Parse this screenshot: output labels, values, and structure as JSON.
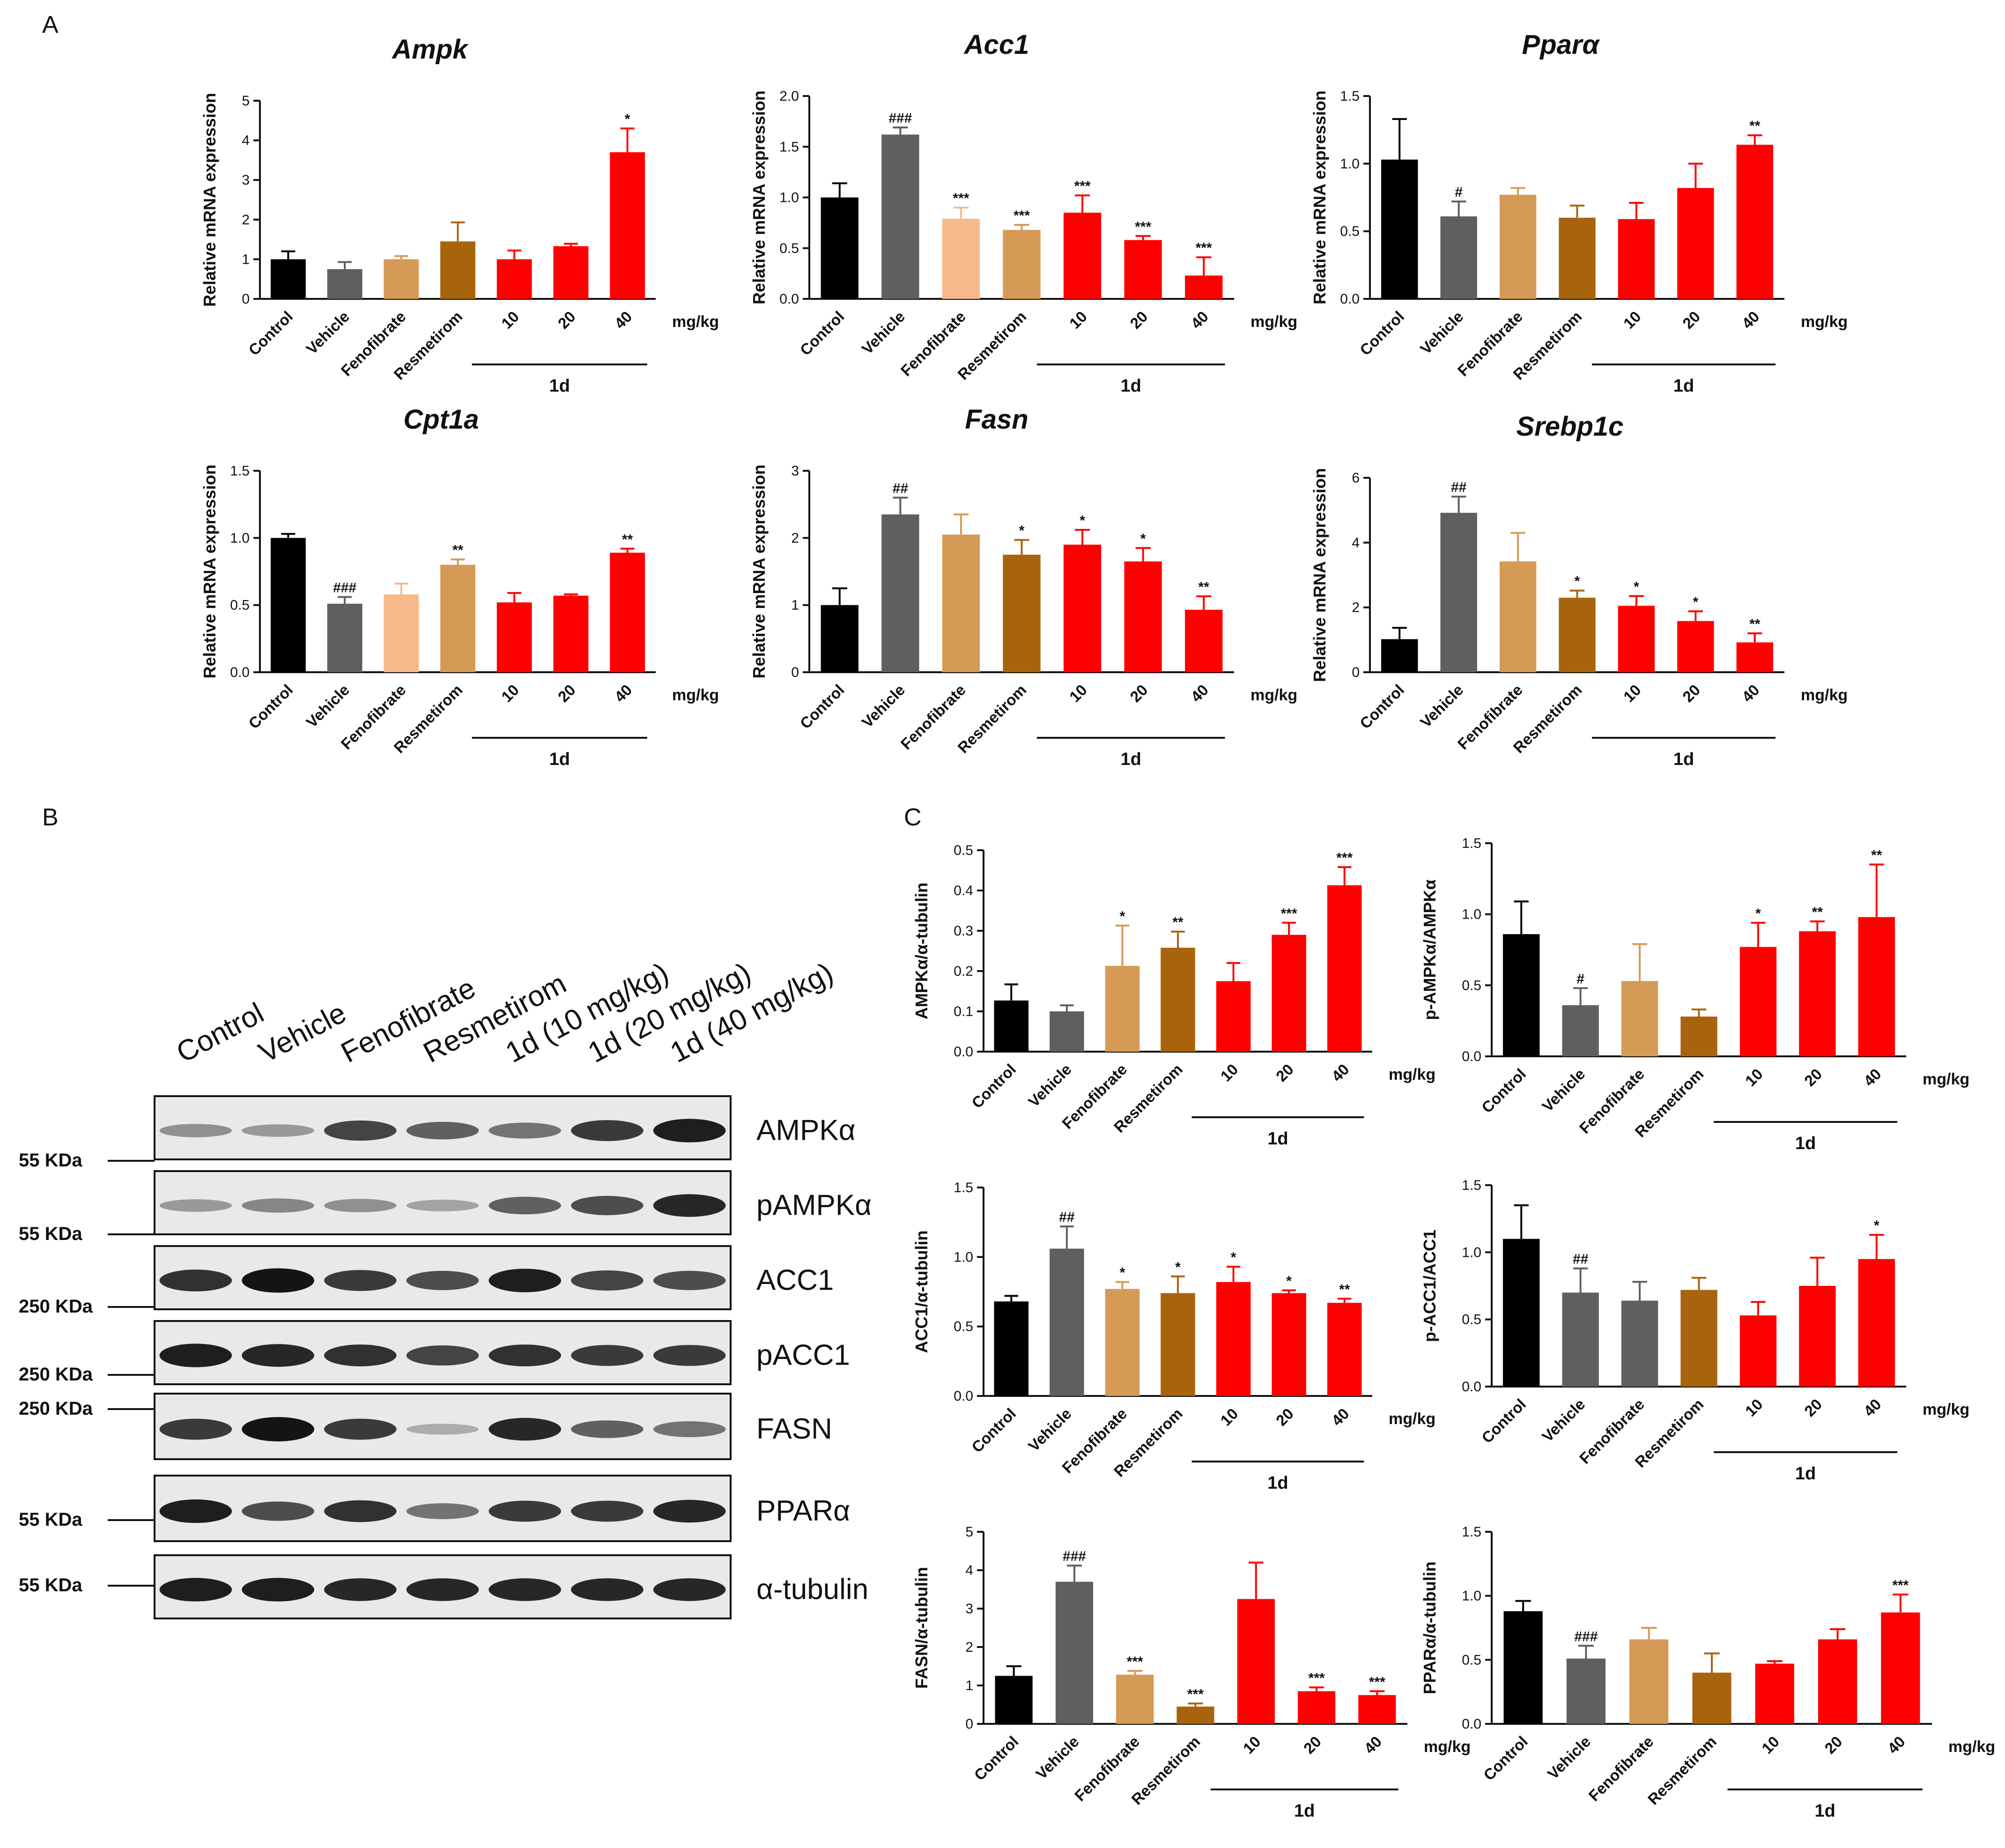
{
  "panel_labels": {
    "a": "A",
    "b": "B",
    "c": "C"
  },
  "colors": {
    "Control": "#000000",
    "Vehicle": "#5f5f5f",
    "Fenofibrate": "#f8b98a",
    "Fenofibrate_tan": "#d59a55",
    "Resmetirom": "#a8640d",
    "low": "#ff0000",
    "mid": "#ff0000",
    "high": "#ff0000"
  },
  "categories": [
    "Control",
    "Vehicle",
    "Fenofibrate",
    "Resmetirom",
    "10",
    "20",
    "40"
  ],
  "unit_label": "mg/kg",
  "group_label": "1d",
  "chart_data": [
    {
      "type": "bar",
      "title": "Ampk",
      "ylabel": "Relative mRNA expression",
      "ylim": [
        0,
        5
      ],
      "yticks": [
        "0",
        "1",
        "2",
        "3",
        "4",
        "5"
      ],
      "values": [
        1.0,
        0.75,
        1.0,
        1.45,
        1.0,
        1.33,
        3.7
      ],
      "errors": [
        0.2,
        0.18,
        0.08,
        0.48,
        0.22,
        0.06,
        0.6
      ],
      "sig": [
        "",
        "",
        "",
        "",
        "",
        "",
        "*"
      ],
      "colors": [
        "#000000",
        "#5f5f5f",
        "#d59a55",
        "#a8640d",
        "#ff0000",
        "#ff0000",
        "#ff0000"
      ]
    },
    {
      "type": "bar",
      "title": "Acc1",
      "ylabel": "Relative mRNA expression",
      "ylim": [
        0,
        2.0
      ],
      "yticks": [
        "0.0",
        "0.5",
        "1.0",
        "1.5",
        "2.0"
      ],
      "values": [
        1.0,
        1.62,
        0.79,
        0.68,
        0.85,
        0.58,
        0.23
      ],
      "errors": [
        0.14,
        0.07,
        0.11,
        0.05,
        0.17,
        0.04,
        0.18
      ],
      "sig": [
        "",
        "###",
        "***",
        "***",
        "***",
        "***",
        "***"
      ],
      "colors": [
        "#000000",
        "#5f5f5f",
        "#f8b98a",
        "#d59a55",
        "#ff0000",
        "#ff0000",
        "#ff0000"
      ]
    },
    {
      "type": "bar",
      "title": "Pparα",
      "ylabel": "Relative mRNA expression",
      "ylim": [
        0,
        1.5
      ],
      "yticks": [
        "0.0",
        "0.5",
        "1.0",
        "1.5"
      ],
      "values": [
        1.03,
        0.61,
        0.77,
        0.6,
        0.59,
        0.82,
        1.14
      ],
      "errors": [
        0.3,
        0.11,
        0.05,
        0.09,
        0.12,
        0.18,
        0.07
      ],
      "sig": [
        "",
        "#",
        "",
        "",
        "",
        "",
        "**"
      ],
      "colors": [
        "#000000",
        "#5f5f5f",
        "#d59a55",
        "#a8640d",
        "#ff0000",
        "#ff0000",
        "#ff0000"
      ]
    },
    {
      "type": "bar",
      "title": "Cpt1a",
      "ylabel": "Relative mRNA expression",
      "ylim": [
        0,
        1.5
      ],
      "yticks": [
        "0.0",
        "0.5",
        "1.0",
        "1.5"
      ],
      "values": [
        1.0,
        0.51,
        0.58,
        0.8,
        0.52,
        0.57,
        0.89
      ],
      "errors": [
        0.03,
        0.05,
        0.08,
        0.04,
        0.07,
        0.01,
        0.03
      ],
      "sig": [
        "",
        "###",
        "",
        "**",
        "",
        "",
        "**"
      ],
      "colors": [
        "#000000",
        "#5f5f5f",
        "#f8b98a",
        "#d59a55",
        "#ff0000",
        "#ff0000",
        "#ff0000"
      ]
    },
    {
      "type": "bar",
      "title": "Fasn",
      "ylabel": "Relative mRNA expression",
      "ylim": [
        0,
        3
      ],
      "yticks": [
        "0",
        "1",
        "2",
        "3"
      ],
      "values": [
        1.0,
        2.35,
        2.05,
        1.75,
        1.9,
        1.65,
        0.93
      ],
      "errors": [
        0.25,
        0.25,
        0.3,
        0.22,
        0.22,
        0.2,
        0.2
      ],
      "sig": [
        "",
        "##",
        "",
        "*",
        "*",
        "*",
        "**"
      ],
      "colors": [
        "#000000",
        "#5f5f5f",
        "#d59a55",
        "#a8640d",
        "#ff0000",
        "#ff0000",
        "#ff0000"
      ]
    },
    {
      "type": "bar",
      "title": "Srebp1c",
      "ylabel": "Relative mRNA expression",
      "ylim": [
        0,
        6
      ],
      "yticks": [
        "0",
        "2",
        "4",
        "6"
      ],
      "values": [
        1.02,
        4.92,
        3.42,
        2.3,
        2.05,
        1.58,
        0.92
      ],
      "errors": [
        0.35,
        0.5,
        0.88,
        0.22,
        0.3,
        0.3,
        0.28
      ],
      "sig": [
        "",
        "##",
        "",
        "*",
        "*",
        "*",
        "**"
      ],
      "colors": [
        "#000000",
        "#5f5f5f",
        "#d59a55",
        "#a8640d",
        "#ff0000",
        "#ff0000",
        "#ff0000"
      ]
    },
    {
      "type": "bar",
      "title": "",
      "ylabel": "AMPKα/α-tubulin",
      "ylim": [
        0,
        0.5
      ],
      "yticks": [
        "0.0",
        "0.1",
        "0.2",
        "0.3",
        "0.4",
        "0.5"
      ],
      "values": [
        0.127,
        0.1,
        0.213,
        0.258,
        0.175,
        0.29,
        0.413
      ],
      "errors": [
        0.04,
        0.015,
        0.1,
        0.04,
        0.045,
        0.03,
        0.045
      ],
      "sig": [
        "",
        "",
        "*",
        "**",
        "",
        "***",
        "***"
      ],
      "colors": [
        "#000000",
        "#5f5f5f",
        "#d59a55",
        "#a8640d",
        "#ff0000",
        "#ff0000",
        "#ff0000"
      ]
    },
    {
      "type": "bar",
      "title": "",
      "ylabel": "p-AMPKα/AMPKα",
      "ylim": [
        0,
        1.5
      ],
      "yticks": [
        "0.0",
        "0.5",
        "1.0",
        "1.5"
      ],
      "values": [
        0.86,
        0.36,
        0.53,
        0.28,
        0.77,
        0.88,
        0.98
      ],
      "errors": [
        0.23,
        0.12,
        0.26,
        0.05,
        0.17,
        0.07,
        0.37
      ],
      "sig": [
        "",
        "#",
        "",
        "",
        "*",
        "**",
        "**"
      ],
      "colors": [
        "#000000",
        "#5f5f5f",
        "#d59a55",
        "#a8640d",
        "#ff0000",
        "#ff0000",
        "#ff0000"
      ]
    },
    {
      "type": "bar",
      "title": "",
      "ylabel": "ACC1/α-tubulin",
      "ylim": [
        0,
        1.5
      ],
      "yticks": [
        "0.0",
        "0.5",
        "1.0",
        "1.5"
      ],
      "values": [
        0.68,
        1.06,
        0.77,
        0.74,
        0.82,
        0.74,
        0.67
      ],
      "errors": [
        0.04,
        0.16,
        0.05,
        0.12,
        0.11,
        0.02,
        0.03
      ],
      "sig": [
        "",
        "##",
        "*",
        "*",
        "*",
        "*",
        "**"
      ],
      "colors": [
        "#000000",
        "#5f5f5f",
        "#d59a55",
        "#a8640d",
        "#ff0000",
        "#ff0000",
        "#ff0000"
      ]
    },
    {
      "type": "bar",
      "title": "",
      "ylabel": "p-ACC1/ACC1",
      "ylim": [
        0,
        1.5
      ],
      "yticks": [
        "0.0",
        "0.5",
        "1.0",
        "1.5"
      ],
      "values": [
        1.1,
        0.7,
        0.64,
        0.72,
        0.53,
        0.75,
        0.95
      ],
      "errors": [
        0.25,
        0.18,
        0.14,
        0.09,
        0.1,
        0.21,
        0.18
      ],
      "sig": [
        "",
        "##",
        "",
        "",
        "",
        "",
        "*"
      ],
      "colors": [
        "#000000",
        "#5f5f5f",
        "#5f5f5f",
        "#a8640d",
        "#ff0000",
        "#ff0000",
        "#ff0000"
      ]
    },
    {
      "type": "bar",
      "title": "",
      "ylabel": "FASN/α-tubulin",
      "ylim": [
        0,
        5
      ],
      "yticks": [
        "0",
        "1",
        "2",
        "3",
        "4",
        "5"
      ],
      "values": [
        1.25,
        3.7,
        1.28,
        0.45,
        3.25,
        0.85,
        0.75
      ],
      "errors": [
        0.25,
        0.42,
        0.1,
        0.08,
        0.95,
        0.1,
        0.1
      ],
      "sig": [
        "",
        "###",
        "***",
        "***",
        "",
        "***",
        "***"
      ],
      "colors": [
        "#000000",
        "#5f5f5f",
        "#d59a55",
        "#a8640d",
        "#ff0000",
        "#ff0000",
        "#ff0000"
      ]
    },
    {
      "type": "bar",
      "title": "",
      "ylabel": "PPARα/α-tubulin",
      "ylim": [
        0,
        1.5
      ],
      "yticks": [
        "0.0",
        "0.5",
        "1.0",
        "1.5"
      ],
      "values": [
        0.88,
        0.51,
        0.66,
        0.4,
        0.47,
        0.66,
        0.87
      ],
      "errors": [
        0.08,
        0.1,
        0.09,
        0.15,
        0.02,
        0.08,
        0.14
      ],
      "sig": [
        "",
        "###",
        "",
        "",
        "",
        "",
        "***"
      ],
      "colors": [
        "#000000",
        "#5f5f5f",
        "#d59a55",
        "#a8640d",
        "#ff0000",
        "#ff0000",
        "#ff0000"
      ]
    }
  ],
  "western_blot": {
    "lanes": [
      "Control",
      "Vehicle",
      "Fenofibrate",
      "Resmetirom",
      "1d (10 mg/kg)",
      "1d (20 mg/kg)",
      "1d (40 mg/kg)"
    ],
    "rows": [
      {
        "protein": "AMPKα",
        "marker": "55  KDa",
        "intensity": [
          0.35,
          0.3,
          0.75,
          0.6,
          0.5,
          0.8,
          0.95
        ]
      },
      {
        "protein": "pAMPKα",
        "marker": "55  KDa",
        "intensity": [
          0.3,
          0.4,
          0.35,
          0.25,
          0.6,
          0.7,
          0.9
        ]
      },
      {
        "protein": "ACC1",
        "marker": "250  KDa",
        "intensity": [
          0.85,
          1.0,
          0.8,
          0.7,
          0.95,
          0.75,
          0.7
        ]
      },
      {
        "protein": "pACC1",
        "marker": "250  KDa",
        "intensity": [
          0.95,
          0.9,
          0.85,
          0.75,
          0.85,
          0.8,
          0.8
        ]
      },
      {
        "protein": "FASN",
        "marker": "250  KDa",
        "intensity": [
          0.8,
          1.0,
          0.8,
          0.2,
          0.9,
          0.6,
          0.5
        ]
      },
      {
        "protein": "PPARα",
        "marker": "55  KDa",
        "intensity": [
          0.95,
          0.7,
          0.85,
          0.5,
          0.8,
          0.8,
          0.9
        ]
      },
      {
        "protein": "α-tubulin",
        "marker": "55  KDa",
        "intensity": [
          0.95,
          0.95,
          0.9,
          0.9,
          0.9,
          0.9,
          0.9
        ]
      }
    ]
  }
}
